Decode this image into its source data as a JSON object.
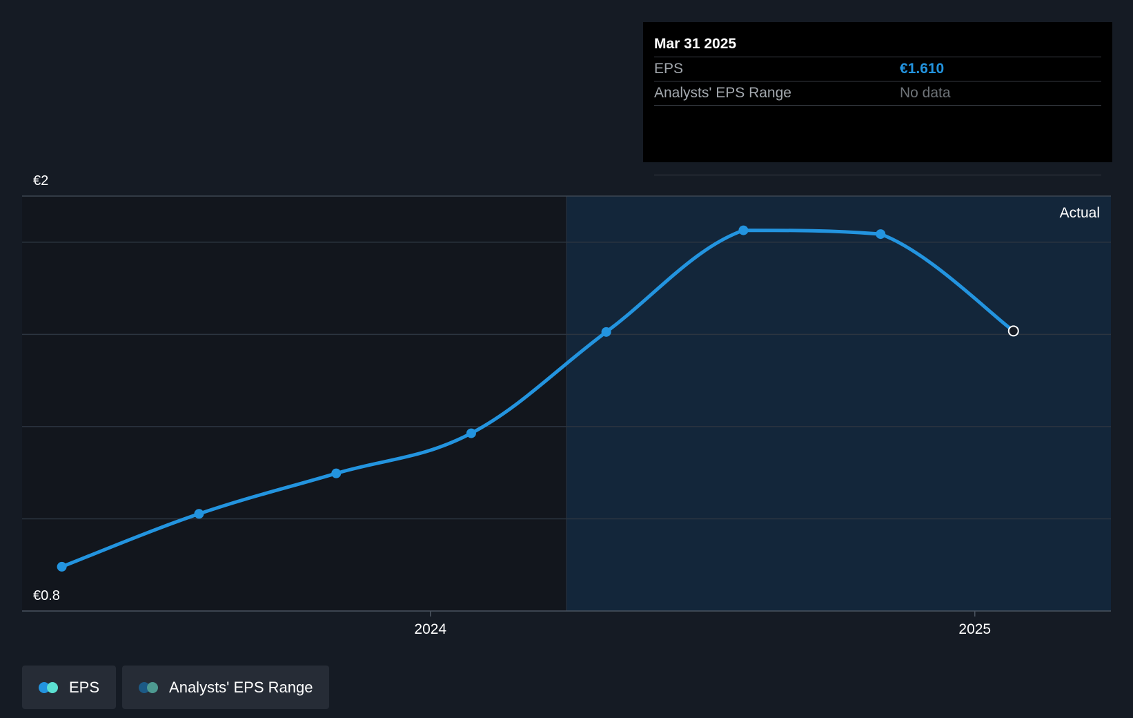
{
  "tooltip": {
    "date": "Mar 31 2025",
    "eps_label": "EPS",
    "eps_value": "€1.610",
    "range_label": "Analysts' EPS Range",
    "range_value": "No data"
  },
  "legend": {
    "eps_label": "EPS",
    "range_label": "Analysts' EPS Range"
  },
  "colors": {
    "background": "#151b24",
    "past_region": "#12161d",
    "actual_region": "#13263a",
    "line": "#2394df",
    "eps_dot_a": "#2394df",
    "eps_dot_b": "#5ce0d2",
    "range_dot_a": "#1c5a86",
    "range_dot_b": "#4e9a91"
  },
  "chart_data": {
    "type": "line",
    "title": "",
    "xlabel": "",
    "ylabel": "",
    "ylim": [
      0.8,
      2.0
    ],
    "xlim": [
      2023.25,
      2025.25
    ],
    "y_tick_labels": [
      "€2",
      "€0.8"
    ],
    "x_ticks": [
      2024,
      2025
    ],
    "x_tick_labels": [
      "2024",
      "2025"
    ],
    "actual_label": "Actual",
    "actual_region_start": 2024.25,
    "series": [
      {
        "name": "EPS",
        "points": [
          {
            "x": 2023.323,
            "y": 0.928
          },
          {
            "x": 2023.575,
            "y": 1.081
          },
          {
            "x": 2023.827,
            "y": 1.198
          },
          {
            "x": 2024.075,
            "y": 1.314
          },
          {
            "x": 2024.323,
            "y": 1.607
          },
          {
            "x": 2024.575,
            "y": 1.901
          },
          {
            "x": 2024.827,
            "y": 1.89
          },
          {
            "x": 2025.071,
            "y": 1.61
          }
        ]
      }
    ],
    "highlight_point": {
      "x": 2025.071,
      "y": 1.61,
      "label": "Mar 31 2025"
    }
  }
}
